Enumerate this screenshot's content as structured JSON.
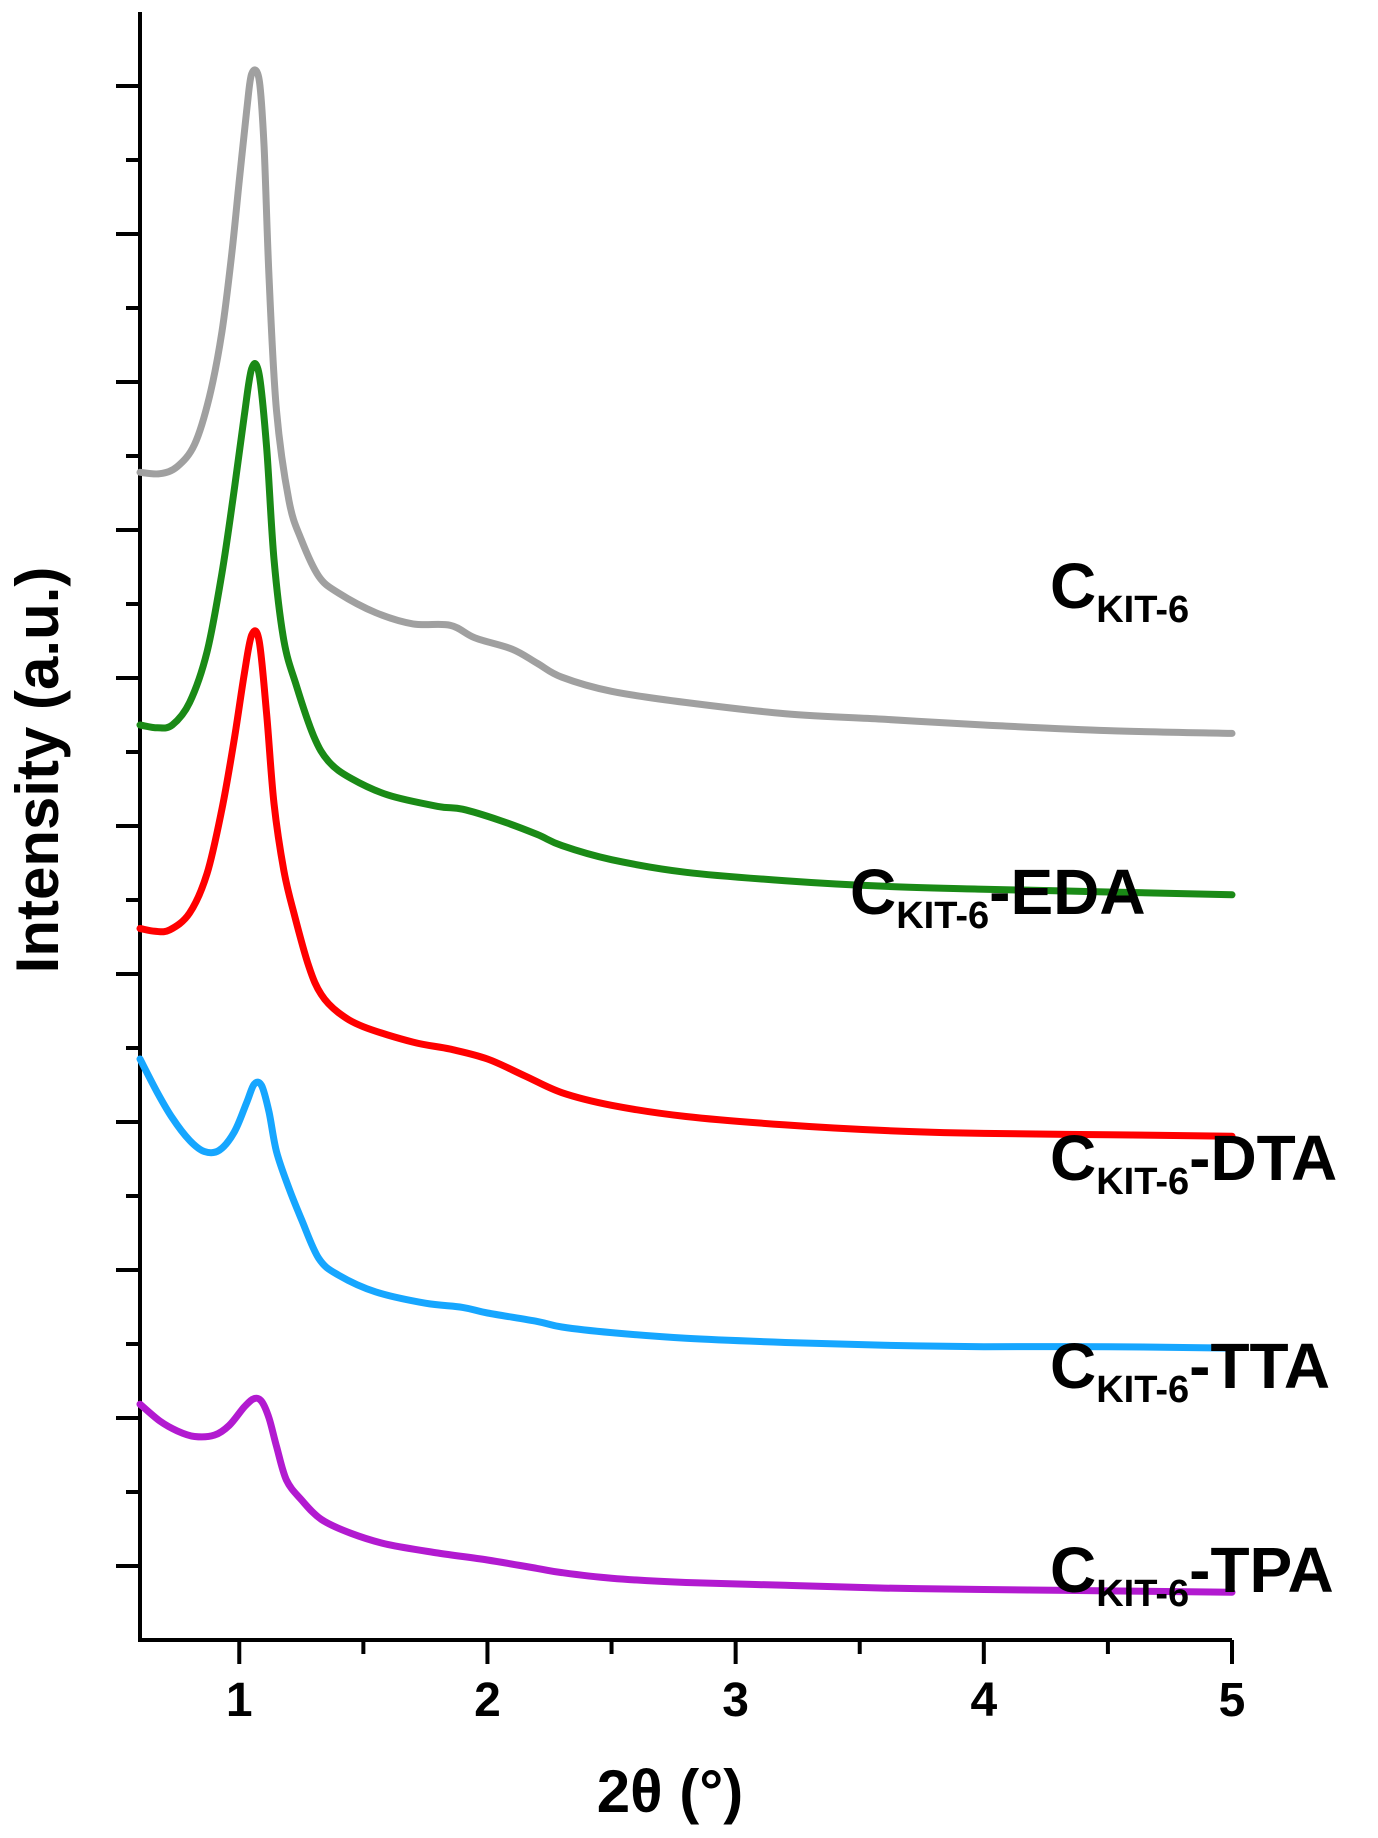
{
  "chart_data": {
    "type": "line",
    "xlabel": "2θ (°)",
    "ylabel": "Intensity (a.u.)",
    "xlim": [
      0.6,
      5
    ],
    "x_ticks": [
      "1",
      "2",
      "3",
      "4",
      "5"
    ],
    "y_ticks_labeled": false,
    "grid": false,
    "legend": "none",
    "series": [
      {
        "name": "C",
        "subscript": "KIT-6",
        "suffix": "",
        "color": "#a0a0a0",
        "points": [
          [
            0.6,
            19.6
          ],
          [
            0.68,
            19.55
          ],
          [
            0.75,
            19.8
          ],
          [
            0.82,
            20.6
          ],
          [
            0.88,
            22.3
          ],
          [
            0.93,
            24.6
          ],
          [
            0.97,
            27.4
          ],
          [
            1.0,
            30.0
          ],
          [
            1.03,
            32.5
          ],
          [
            1.05,
            33.8
          ],
          [
            1.08,
            33.6
          ],
          [
            1.1,
            31.2
          ],
          [
            1.12,
            26.5
          ],
          [
            1.15,
            21.8
          ],
          [
            1.2,
            18.6
          ],
          [
            1.25,
            17.2
          ],
          [
            1.32,
            15.9
          ],
          [
            1.4,
            15.3
          ],
          [
            1.55,
            14.6
          ],
          [
            1.7,
            14.2
          ],
          [
            1.85,
            14.15
          ],
          [
            1.95,
            13.7
          ],
          [
            2.1,
            13.3
          ],
          [
            2.2,
            12.8
          ],
          [
            2.3,
            12.3
          ],
          [
            2.5,
            11.8
          ],
          [
            2.8,
            11.4
          ],
          [
            3.2,
            11.0
          ],
          [
            3.6,
            10.8
          ],
          [
            4.0,
            10.6
          ],
          [
            4.5,
            10.4
          ],
          [
            5.0,
            10.3
          ]
        ]
      },
      {
        "name": "C",
        "subscript": "KIT-6",
        "suffix": "-EDA",
        "color": "#1a8a16",
        "points": [
          [
            0.6,
            10.6
          ],
          [
            0.67,
            10.5
          ],
          [
            0.73,
            10.6
          ],
          [
            0.8,
            11.4
          ],
          [
            0.87,
            13.2
          ],
          [
            0.93,
            16.0
          ],
          [
            0.98,
            19.0
          ],
          [
            1.02,
            21.6
          ],
          [
            1.05,
            23.3
          ],
          [
            1.08,
            23.1
          ],
          [
            1.11,
            20.5
          ],
          [
            1.14,
            16.5
          ],
          [
            1.18,
            13.6
          ],
          [
            1.23,
            12.0
          ],
          [
            1.3,
            10.2
          ],
          [
            1.36,
            9.3
          ],
          [
            1.45,
            8.7
          ],
          [
            1.6,
            8.1
          ],
          [
            1.8,
            7.7
          ],
          [
            1.9,
            7.6
          ],
          [
            2.05,
            7.2
          ],
          [
            2.2,
            6.7
          ],
          [
            2.3,
            6.3
          ],
          [
            2.5,
            5.8
          ],
          [
            2.8,
            5.35
          ],
          [
            3.2,
            5.05
          ],
          [
            3.6,
            4.85
          ],
          [
            4.0,
            4.75
          ],
          [
            4.5,
            4.65
          ],
          [
            5.0,
            4.55
          ]
        ]
      },
      {
        "name": "C",
        "subscript": "KIT-6",
        "suffix": "-DTA",
        "color": "#ff0000",
        "points": [
          [
            0.6,
            3.35
          ],
          [
            0.66,
            3.25
          ],
          [
            0.72,
            3.3
          ],
          [
            0.8,
            3.9
          ],
          [
            0.87,
            5.3
          ],
          [
            0.93,
            7.6
          ],
          [
            0.98,
            10.1
          ],
          [
            1.02,
            12.4
          ],
          [
            1.05,
            13.8
          ],
          [
            1.08,
            13.6
          ],
          [
            1.11,
            11.0
          ],
          [
            1.14,
            7.8
          ],
          [
            1.18,
            5.4
          ],
          [
            1.22,
            3.9
          ],
          [
            1.28,
            2.0
          ],
          [
            1.33,
            1.0
          ],
          [
            1.4,
            0.35
          ],
          [
            1.5,
            -0.15
          ],
          [
            1.7,
            -0.7
          ],
          [
            1.85,
            -0.95
          ],
          [
            2.0,
            -1.3
          ],
          [
            2.15,
            -1.9
          ],
          [
            2.3,
            -2.5
          ],
          [
            2.5,
            -2.95
          ],
          [
            2.8,
            -3.35
          ],
          [
            3.2,
            -3.65
          ],
          [
            3.6,
            -3.85
          ],
          [
            4.0,
            -3.95
          ],
          [
            4.5,
            -4.0
          ],
          [
            5.0,
            -4.05
          ]
        ]
      },
      {
        "name": "C",
        "subscript": "KIT-6",
        "suffix": "-TTA",
        "color": "#16a6ff",
        "points": [
          [
            0.6,
            -1.3
          ],
          [
            0.67,
            -2.5
          ],
          [
            0.73,
            -3.4
          ],
          [
            0.8,
            -4.2
          ],
          [
            0.86,
            -4.6
          ],
          [
            0.92,
            -4.55
          ],
          [
            0.98,
            -3.9
          ],
          [
            1.03,
            -2.85
          ],
          [
            1.06,
            -2.2
          ],
          [
            1.09,
            -2.25
          ],
          [
            1.12,
            -3.2
          ],
          [
            1.15,
            -4.6
          ],
          [
            1.2,
            -5.9
          ],
          [
            1.25,
            -7.0
          ],
          [
            1.32,
            -8.4
          ],
          [
            1.4,
            -9.0
          ],
          [
            1.55,
            -9.6
          ],
          [
            1.75,
            -10.0
          ],
          [
            1.9,
            -10.15
          ],
          [
            2.0,
            -10.35
          ],
          [
            2.2,
            -10.65
          ],
          [
            2.3,
            -10.85
          ],
          [
            2.5,
            -11.05
          ],
          [
            2.8,
            -11.25
          ],
          [
            3.2,
            -11.4
          ],
          [
            3.6,
            -11.5
          ],
          [
            4.0,
            -11.55
          ],
          [
            4.5,
            -11.55
          ],
          [
            5.0,
            -11.6
          ]
        ]
      },
      {
        "name": "C",
        "subscript": "KIT-6",
        "suffix": "-TPA",
        "color": "#b21ad0",
        "points": [
          [
            0.6,
            -13.6
          ],
          [
            0.68,
            -14.2
          ],
          [
            0.75,
            -14.55
          ],
          [
            0.82,
            -14.75
          ],
          [
            0.9,
            -14.7
          ],
          [
            0.96,
            -14.35
          ],
          [
            1.02,
            -13.7
          ],
          [
            1.06,
            -13.4
          ],
          [
            1.09,
            -13.5
          ],
          [
            1.12,
            -14.1
          ],
          [
            1.15,
            -15.1
          ],
          [
            1.19,
            -16.3
          ],
          [
            1.25,
            -17.0
          ],
          [
            1.33,
            -17.7
          ],
          [
            1.45,
            -18.2
          ],
          [
            1.6,
            -18.6
          ],
          [
            1.8,
            -18.9
          ],
          [
            2.0,
            -19.15
          ],
          [
            2.2,
            -19.45
          ],
          [
            2.3,
            -19.6
          ],
          [
            2.5,
            -19.8
          ],
          [
            2.8,
            -19.95
          ],
          [
            3.2,
            -20.05
          ],
          [
            3.6,
            -20.15
          ],
          [
            4.0,
            -20.2
          ],
          [
            4.5,
            -20.25
          ],
          [
            5.0,
            -20.3
          ]
        ]
      }
    ]
  }
}
